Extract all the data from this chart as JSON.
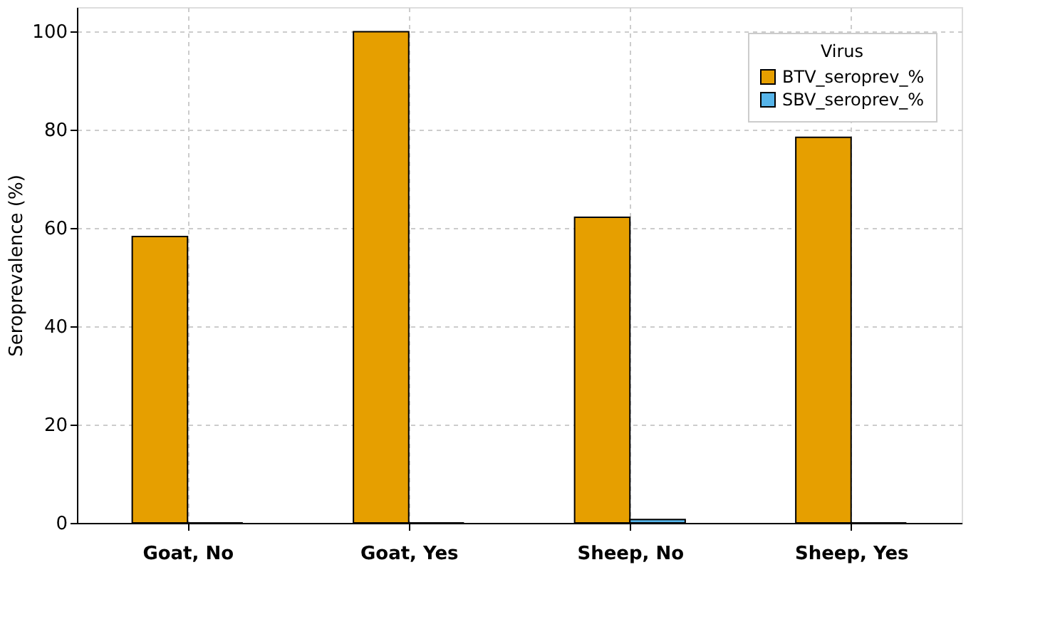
{
  "chart_data": {
    "type": "bar",
    "ylabel": "Seroprevalence (%)",
    "legend_title": "Virus",
    "categories": [
      "Goat, No",
      "Goat, Yes",
      "Sheep, No",
      "Sheep, Yes"
    ],
    "series": [
      {
        "name": "BTV_seroprev_%",
        "color": "#e69f00",
        "values": [
          58.3,
          100,
          62.2,
          78.5
        ]
      },
      {
        "name": "SBV_seroprev_%",
        "color": "#56b4e9",
        "values": [
          0,
          0,
          0.7,
          0
        ]
      }
    ],
    "ylim": [
      0,
      105
    ],
    "yticks": [
      0,
      20,
      40,
      60,
      80,
      100
    ],
    "grid": true,
    "legend": "top right"
  }
}
